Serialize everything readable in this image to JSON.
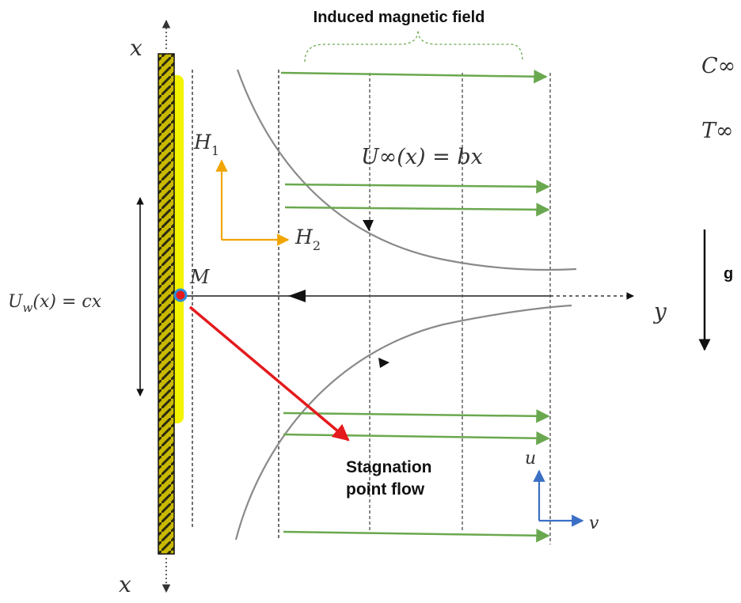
{
  "title": "Induced magnetic field",
  "c_inf": "C∞",
  "t_inf": "T∞",
  "u_inf_eq": "U∞(x) = bx",
  "h1": "H",
  "h1_sub": "1",
  "h2": "H",
  "h2_sub": "2",
  "point_m": "M",
  "gravity": "g",
  "y_axis": "y",
  "x_top": "x",
  "x_bottom": "x",
  "u_w_main": "U",
  "u_w_sub": "w",
  "u_w_rest": "(x) = cx",
  "stagnation_line1": "Stagnation",
  "stagnation_line2": "point flow",
  "u_label": "u",
  "v_label": "v",
  "colors": {
    "field_arrows": "#6aa84f",
    "h_axes": "#f0a500",
    "stagnation_arrow": "#e41a1c",
    "uv_axes": "#3a6fc4",
    "sheet": "#c9b800",
    "streamline": "#8a8a8a",
    "highlight": "#f4f400",
    "point_m_fill": "#e41a1c",
    "point_m_ring": "#2f8fd8"
  }
}
